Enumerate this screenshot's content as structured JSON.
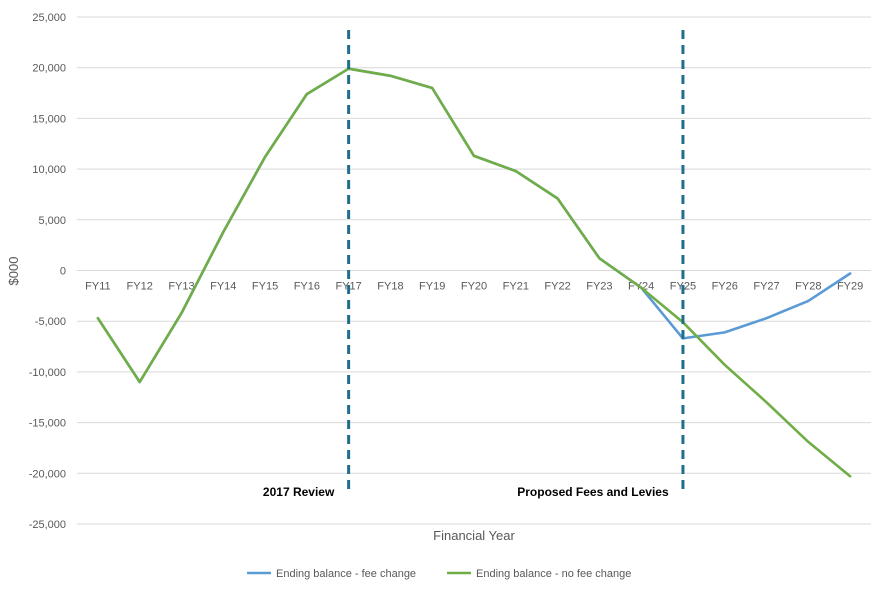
{
  "chart_data": {
    "type": "line",
    "xlabel": "Financial Year",
    "ylabel": "$000",
    "categories": [
      "FY11",
      "FY12",
      "FY13",
      "FY14",
      "FY15",
      "FY16",
      "FY17",
      "FY18",
      "FY19",
      "FY20",
      "FY21",
      "FY22",
      "FY23",
      "FY24",
      "FY25",
      "FY26",
      "FY27",
      "FY28",
      "FY29"
    ],
    "ylim": [
      -25000,
      25000
    ],
    "yticks": [
      25000,
      20000,
      15000,
      10000,
      5000,
      0,
      -5000,
      -10000,
      -15000,
      -20000,
      -25000
    ],
    "ytick_labels": [
      "25,000",
      "20,000",
      "15,000",
      "10,000",
      "5,000",
      "0",
      "-5,000",
      "-10,000",
      "-15,000",
      "-20,000",
      "-25,000"
    ],
    "grid": true,
    "legend_position": "bottom",
    "series": [
      {
        "name": "Ending balance - fee change",
        "color": "#5B9BD5",
        "values": [
          -4700,
          -11000,
          -4200,
          3800,
          11200,
          17400,
          19900,
          19200,
          18000,
          11300,
          9800,
          7100,
          1200,
          -1700,
          -6700,
          -6100,
          -4700,
          -3000,
          -300
        ]
      },
      {
        "name": "Ending balance - no fee change",
        "color": "#70AD47",
        "values": [
          -4700,
          -11000,
          -4200,
          3800,
          11200,
          17400,
          19900,
          19200,
          18000,
          11300,
          9800,
          7100,
          1200,
          -1700,
          -5100,
          -9300,
          -13000,
          -16900,
          -20300
        ]
      }
    ],
    "annotations": [
      {
        "label": "2017 Review",
        "at": "FY17",
        "style": "dashed-vertical",
        "color": "#1F6E8C"
      },
      {
        "label": "Proposed Fees and Levies",
        "at": "FY25",
        "style": "dashed-vertical",
        "color": "#1F6E8C"
      }
    ]
  }
}
